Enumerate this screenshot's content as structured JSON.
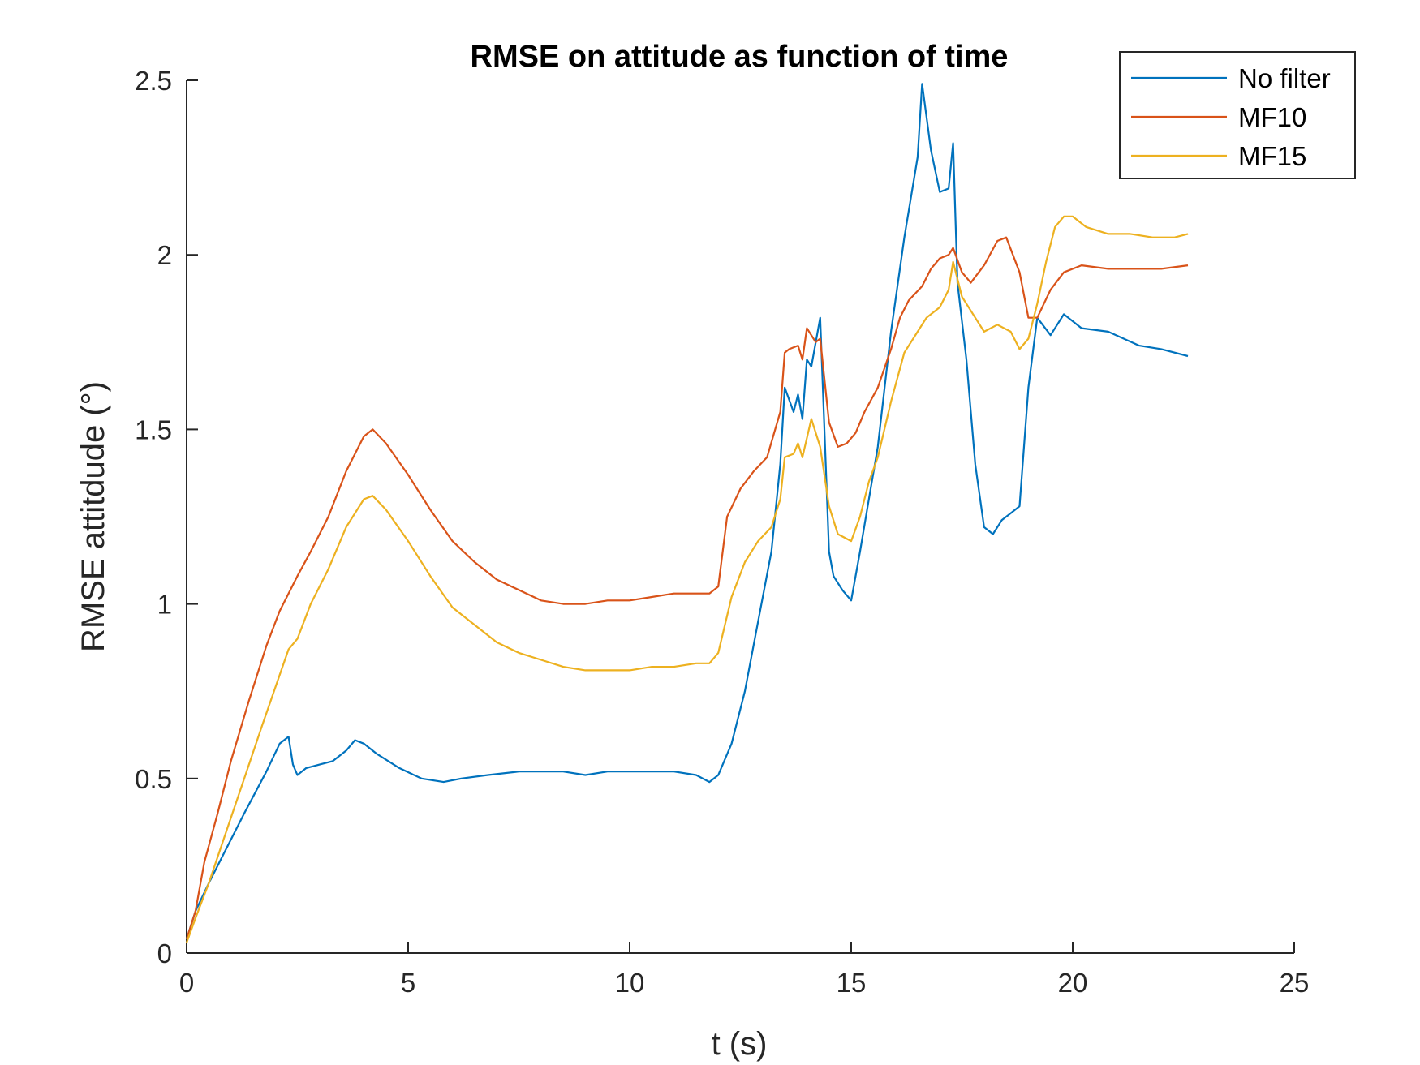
{
  "chart_data": {
    "type": "line",
    "title": "RMSE on attitude as function of time",
    "xlabel": "t (s)",
    "ylabel": "RMSE attitdude (°)",
    "xlim": [
      0,
      25
    ],
    "ylim": [
      0,
      2.5
    ],
    "xticks": [
      0,
      5,
      10,
      15,
      20,
      25
    ],
    "xtick_labels": [
      "0",
      "5",
      "10",
      "15",
      "20",
      "25"
    ],
    "yticks": [
      0,
      0.5,
      1,
      1.5,
      2,
      2.5
    ],
    "ytick_labels": [
      "0",
      "0.5",
      "1",
      "1.5",
      "2",
      "2.5"
    ],
    "grid": false,
    "box": false,
    "legend_position": "top-right",
    "series": [
      {
        "name": "No filter",
        "color": "#0072BD",
        "x": [
          0,
          0.2,
          0.5,
          0.9,
          1.3,
          1.8,
          2.1,
          2.3,
          2.4,
          2.5,
          2.7,
          3.0,
          3.3,
          3.6,
          3.8,
          4.0,
          4.3,
          4.8,
          5.3,
          5.8,
          6.2,
          6.8,
          7.5,
          8.0,
          8.5,
          9.0,
          9.5,
          10.0,
          10.5,
          11.0,
          11.5,
          11.8,
          12.0,
          12.3,
          12.6,
          12.9,
          13.2,
          13.4,
          13.5,
          13.7,
          13.8,
          13.9,
          14.0,
          14.1,
          14.3,
          14.5,
          14.6,
          14.8,
          15.0,
          15.2,
          15.4,
          15.6,
          15.9,
          16.2,
          16.5,
          16.6,
          16.8,
          17.0,
          17.2,
          17.3,
          17.4,
          17.6,
          17.8,
          18.0,
          18.2,
          18.4,
          18.6,
          18.8,
          19.0,
          19.2,
          19.5,
          19.8,
          20.2,
          20.8,
          21.5,
          22.0,
          22.6
        ],
        "y": [
          0.04,
          0.12,
          0.2,
          0.3,
          0.4,
          0.52,
          0.6,
          0.62,
          0.54,
          0.51,
          0.53,
          0.54,
          0.55,
          0.58,
          0.61,
          0.6,
          0.57,
          0.53,
          0.5,
          0.49,
          0.5,
          0.51,
          0.52,
          0.52,
          0.52,
          0.51,
          0.52,
          0.52,
          0.52,
          0.52,
          0.51,
          0.49,
          0.51,
          0.6,
          0.75,
          0.95,
          1.15,
          1.4,
          1.62,
          1.55,
          1.6,
          1.53,
          1.7,
          1.68,
          1.82,
          1.15,
          1.08,
          1.04,
          1.01,
          1.15,
          1.3,
          1.45,
          1.78,
          2.05,
          2.28,
          2.49,
          2.3,
          2.18,
          2.19,
          2.32,
          1.92,
          1.7,
          1.4,
          1.22,
          1.2,
          1.24,
          1.26,
          1.28,
          1.62,
          1.82,
          1.77,
          1.83,
          1.79,
          1.78,
          1.74,
          1.73,
          1.71
        ]
      },
      {
        "name": "MF10",
        "color": "#D95319",
        "x": [
          0,
          0.2,
          0.4,
          0.7,
          1.0,
          1.4,
          1.8,
          2.1,
          2.3,
          2.5,
          2.8,
          3.2,
          3.6,
          4.0,
          4.2,
          4.5,
          5.0,
          5.5,
          6.0,
          6.5,
          7.0,
          7.5,
          8.0,
          8.5,
          9.0,
          9.5,
          10.0,
          10.5,
          11.0,
          11.5,
          11.8,
          12.0,
          12.2,
          12.5,
          12.8,
          13.1,
          13.4,
          13.5,
          13.6,
          13.8,
          13.9,
          14.0,
          14.2,
          14.3,
          14.5,
          14.7,
          14.9,
          15.1,
          15.3,
          15.6,
          15.9,
          16.1,
          16.3,
          16.6,
          16.8,
          17.0,
          17.2,
          17.3,
          17.5,
          17.7,
          18.0,
          18.3,
          18.5,
          18.8,
          19.0,
          19.2,
          19.5,
          19.8,
          20.2,
          20.8,
          21.5,
          22.0,
          22.6
        ],
        "y": [
          0.04,
          0.12,
          0.26,
          0.4,
          0.55,
          0.72,
          0.88,
          0.98,
          1.03,
          1.08,
          1.15,
          1.25,
          1.38,
          1.48,
          1.5,
          1.46,
          1.37,
          1.27,
          1.18,
          1.12,
          1.07,
          1.04,
          1.01,
          1.0,
          1.0,
          1.01,
          1.01,
          1.02,
          1.03,
          1.03,
          1.03,
          1.05,
          1.25,
          1.33,
          1.38,
          1.42,
          1.55,
          1.72,
          1.73,
          1.74,
          1.7,
          1.79,
          1.75,
          1.76,
          1.52,
          1.45,
          1.46,
          1.49,
          1.55,
          1.62,
          1.73,
          1.82,
          1.87,
          1.91,
          1.96,
          1.99,
          2.0,
          2.02,
          1.95,
          1.92,
          1.97,
          2.04,
          2.05,
          1.95,
          1.82,
          1.82,
          1.9,
          1.95,
          1.97,
          1.96,
          1.96,
          1.96,
          1.97
        ]
      },
      {
        "name": "MF15",
        "color": "#EDB120",
        "x": [
          0,
          0.2,
          0.5,
          0.9,
          1.3,
          1.7,
          2.0,
          2.3,
          2.5,
          2.8,
          3.2,
          3.6,
          4.0,
          4.2,
          4.5,
          5.0,
          5.5,
          6.0,
          6.5,
          7.0,
          7.5,
          8.0,
          8.5,
          9.0,
          9.5,
          10.0,
          10.5,
          11.0,
          11.5,
          11.8,
          12.0,
          12.3,
          12.6,
          12.9,
          13.2,
          13.4,
          13.5,
          13.7,
          13.8,
          13.9,
          14.1,
          14.3,
          14.5,
          14.7,
          15.0,
          15.2,
          15.4,
          15.6,
          15.9,
          16.2,
          16.5,
          16.7,
          17.0,
          17.2,
          17.3,
          17.5,
          17.8,
          18.0,
          18.3,
          18.6,
          18.8,
          19.0,
          19.2,
          19.4,
          19.6,
          19.8,
          20.0,
          20.3,
          20.8,
          21.3,
          21.8,
          22.3,
          22.6
        ],
        "y": [
          0.03,
          0.1,
          0.2,
          0.35,
          0.5,
          0.65,
          0.76,
          0.87,
          0.9,
          1.0,
          1.1,
          1.22,
          1.3,
          1.31,
          1.27,
          1.18,
          1.08,
          0.99,
          0.94,
          0.89,
          0.86,
          0.84,
          0.82,
          0.81,
          0.81,
          0.81,
          0.82,
          0.82,
          0.83,
          0.83,
          0.86,
          1.02,
          1.12,
          1.18,
          1.22,
          1.3,
          1.42,
          1.43,
          1.46,
          1.42,
          1.53,
          1.45,
          1.28,
          1.2,
          1.18,
          1.25,
          1.35,
          1.42,
          1.58,
          1.72,
          1.78,
          1.82,
          1.85,
          1.9,
          1.98,
          1.88,
          1.82,
          1.78,
          1.8,
          1.78,
          1.73,
          1.76,
          1.86,
          1.98,
          2.08,
          2.11,
          2.11,
          2.08,
          2.06,
          2.06,
          2.05,
          2.05,
          2.06
        ]
      }
    ]
  }
}
